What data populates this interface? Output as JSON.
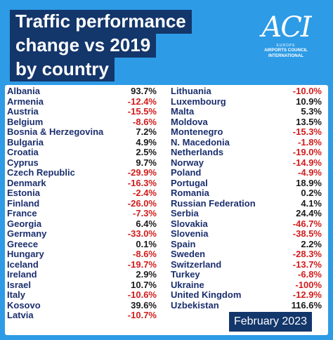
{
  "title": [
    "Traffic performance",
    "change vs 2019",
    "by country"
  ],
  "logo": {
    "mark": "ACI",
    "sub": "EUROPE",
    "name": [
      "AIRPORTS COUNCIL",
      "INTERNATIONAL"
    ]
  },
  "left_column": [
    {
      "country": "Albania",
      "value": "93.7%"
    },
    {
      "country": "Armenia",
      "value": "-12.4%"
    },
    {
      "country": "Austria",
      "value": "-15.5%"
    },
    {
      "country": "Belgium",
      "value": "-8.6%"
    },
    {
      "country": "Bosnia & Herzegovina",
      "value": "7.2%"
    },
    {
      "country": "Bulgaria",
      "value": "4.9%"
    },
    {
      "country": "Croatia",
      "value": "2.5%"
    },
    {
      "country": "Cyprus",
      "value": "9.7%"
    },
    {
      "country": "Czech Republic",
      "value": "-29.9%"
    },
    {
      "country": "Denmark",
      "value": "-16.3%"
    },
    {
      "country": "Estonia",
      "value": "-2.4%"
    },
    {
      "country": "Finland",
      "value": "-26.0%"
    },
    {
      "country": "France",
      "value": "-7.3%"
    },
    {
      "country": "Georgia",
      "value": "6.4%"
    },
    {
      "country": "Germany",
      "value": "-33.0%"
    },
    {
      "country": "Greece",
      "value": "0.1%"
    },
    {
      "country": "Hungary",
      "value": "-8.6%"
    },
    {
      "country": "Iceland",
      "value": "-19.7%"
    },
    {
      "country": "Ireland",
      "value": "2.9%"
    },
    {
      "country": "Israel",
      "value": "10.7%"
    },
    {
      "country": "Italy",
      "value": "-10.6%"
    },
    {
      "country": "Kosovo",
      "value": "39.6%"
    },
    {
      "country": "Latvia",
      "value": "-10.7%"
    }
  ],
  "right_column": [
    {
      "country": "Lithuania",
      "value": "-10.0%"
    },
    {
      "country": "Luxembourg",
      "value": "10.9%"
    },
    {
      "country": "Malta",
      "value": "5.3%"
    },
    {
      "country": "Moldova",
      "value": "13.5%"
    },
    {
      "country": "Montenegro",
      "value": "-15.3%"
    },
    {
      "country": "N. Macedonia",
      "value": "-1.8%"
    },
    {
      "country": "Netherlands",
      "value": "-19.0%"
    },
    {
      "country": "Norway",
      "value": "-14.9%"
    },
    {
      "country": "Poland",
      "value": "-4.9%"
    },
    {
      "country": "Portugal",
      "value": "18.9%"
    },
    {
      "country": "Romania",
      "value": "0.2%"
    },
    {
      "country": "Russian Federation",
      "value": "4.1%"
    },
    {
      "country": "Serbia",
      "value": "24.4%"
    },
    {
      "country": "Slovakia",
      "value": "-46.7%"
    },
    {
      "country": "Slovenia",
      "value": "-38.5%"
    },
    {
      "country": "Spain",
      "value": "2.2%"
    },
    {
      "country": "Sweden",
      "value": "-28.3%"
    },
    {
      "country": "Switzerland",
      "value": "-13.7%"
    },
    {
      "country": "Turkey",
      "value": "-6.8%"
    },
    {
      "country": "Ukraine",
      "value": "-100%"
    },
    {
      "country": "United Kingdom",
      "value": "-12.9%"
    },
    {
      "country": "Uzbekistan",
      "value": "116.6%"
    }
  ],
  "date_label": "February 2023",
  "colors": {
    "background": "#2d9be6",
    "title_box": "#13366b",
    "country_text": "#1b2f6e",
    "negative": "#d21c1c",
    "positive": "#1a1a1a"
  }
}
